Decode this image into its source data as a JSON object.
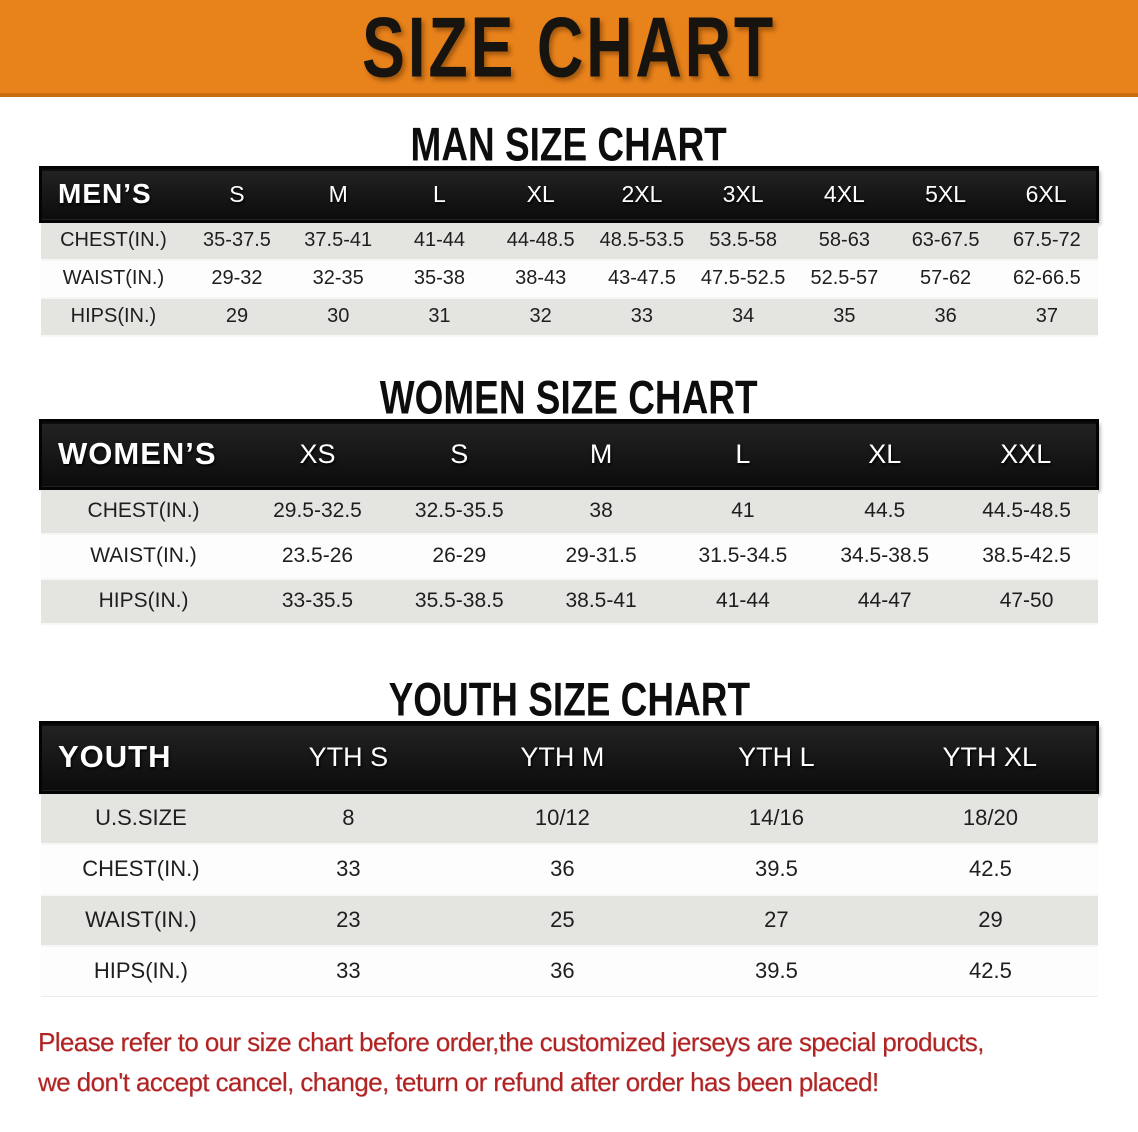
{
  "banner": {
    "title": "SIZE CHART"
  },
  "colors": {
    "banner_bg": "#E8821B",
    "banner_text": "#171410",
    "header_bar_bg": "#141414",
    "header_bar_text": "#ffffff",
    "row_gray": "#E4E4E1",
    "row_white": "#FDFDFD",
    "disclaimer_red": "#B22222"
  },
  "tables": {
    "men": {
      "heading": "MAN SIZE CHART",
      "label": "MEN’S",
      "sizes": [
        "S",
        "M",
        "L",
        "XL",
        "2XL",
        "3XL",
        "4XL",
        "5XL",
        "6XL"
      ],
      "rows": [
        {
          "label": "CHEST(IN.)",
          "values": [
            "35-37.5",
            "37.5-41",
            "41-44",
            "44-48.5",
            "48.5-53.5",
            "53.5-58",
            "58-63",
            "63-67.5",
            "67.5-72"
          ]
        },
        {
          "label": "WAIST(IN.)",
          "values": [
            "29-32",
            "32-35",
            "35-38",
            "38-43",
            "43-47.5",
            "47.5-52.5",
            "52.5-57",
            "57-62",
            "62-66.5"
          ]
        },
        {
          "label": "HIPS(IN.)",
          "values": [
            "29",
            "30",
            "31",
            "32",
            "33",
            "34",
            "35",
            "36",
            "37"
          ]
        }
      ]
    },
    "women": {
      "heading": "WOMEN SIZE CHART",
      "label": "WOMEN’S",
      "sizes": [
        "XS",
        "S",
        "M",
        "L",
        "XL",
        "XXL"
      ],
      "rows": [
        {
          "label": "CHEST(IN.)",
          "values": [
            "29.5-32.5",
            "32.5-35.5",
            "38",
            "41",
            "44.5",
            "44.5-48.5"
          ]
        },
        {
          "label": "WAIST(IN.)",
          "values": [
            "23.5-26",
            "26-29",
            "29-31.5",
            "31.5-34.5",
            "34.5-38.5",
            "38.5-42.5"
          ]
        },
        {
          "label": "HIPS(IN.)",
          "values": [
            "33-35.5",
            "35.5-38.5",
            "38.5-41",
            "41-44",
            "44-47",
            "47-50"
          ]
        }
      ]
    },
    "youth": {
      "heading": "YOUTH SIZE CHART",
      "label": "YOUTH",
      "sizes": [
        "YTH S",
        "YTH M",
        "YTH L",
        "YTH XL"
      ],
      "rows": [
        {
          "label": "U.S.SIZE",
          "values": [
            "8",
            "10/12",
            "14/16",
            "18/20"
          ]
        },
        {
          "label": "CHEST(IN.)",
          "values": [
            "33",
            "36",
            "39.5",
            "42.5"
          ]
        },
        {
          "label": "WAIST(IN.)",
          "values": [
            "23",
            "25",
            "27",
            "29"
          ]
        },
        {
          "label": "HIPS(IN.)",
          "values": [
            "33",
            "36",
            "39.5",
            "42.5"
          ]
        }
      ]
    }
  },
  "disclaimer": {
    "lines": [
      "Please refer to our size chart before order,the customized jerseys are special products,",
      "we don't accept cancel, change, teturn or refund after order has been placed!"
    ]
  }
}
